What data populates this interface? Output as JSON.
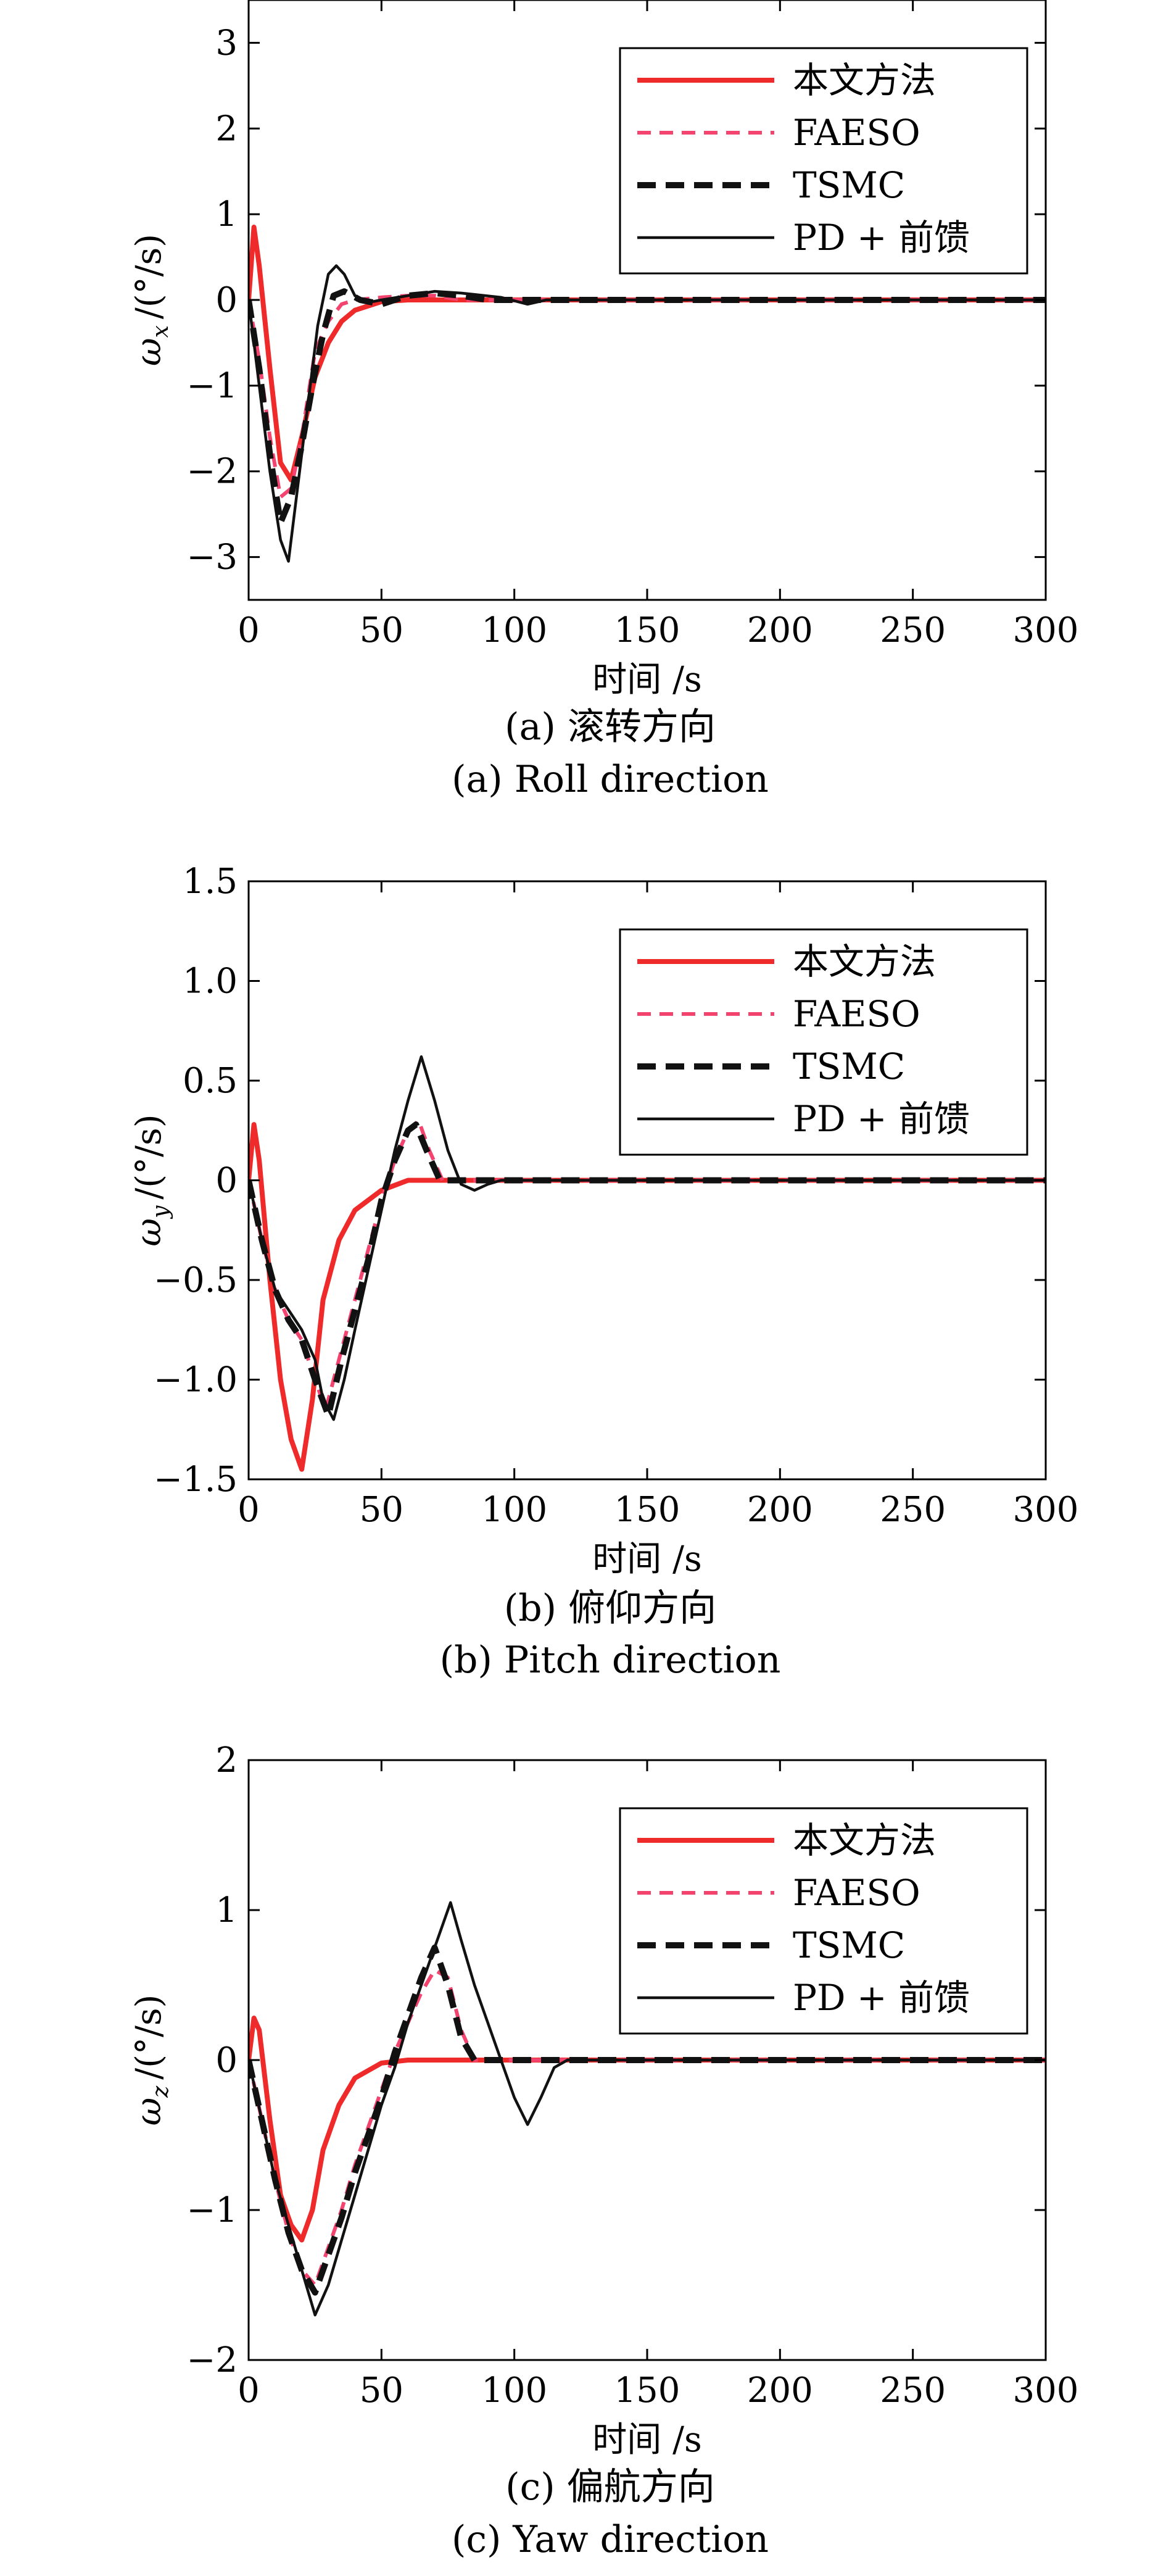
{
  "chart_data": [
    {
      "type": "line",
      "caption_cn": "(a) 滚转方向",
      "caption_en": "(a) Roll direction",
      "xlabel": "时间 /s",
      "ylabel": "ω_x /(°/s)",
      "ylabel_symbol": "ω",
      "ylabel_sub": "x",
      "ylabel_unit": "/(°/s)",
      "xlim": [
        0,
        300
      ],
      "ylim": [
        -3.5,
        3.5
      ],
      "xticks": [
        0,
        50,
        100,
        150,
        200,
        250,
        300
      ],
      "xtick_labels": [
        "0",
        "50",
        "100",
        "150",
        "200",
        "250",
        "300"
      ],
      "yticks": [
        3,
        2,
        1,
        0,
        -1,
        -2,
        -3
      ],
      "ytick_labels": [
        "3",
        "2",
        "1",
        "0",
        "−1",
        "−2",
        "−3"
      ],
      "legend_position": "top-right",
      "grid": false,
      "series": [
        {
          "name": "本文方法",
          "color": "#ee2a2a",
          "style": "solid-thick",
          "x": [
            0,
            2,
            4,
            8,
            12,
            16,
            20,
            25,
            30,
            35,
            40,
            50,
            60,
            70,
            80,
            300
          ],
          "y": [
            0,
            0.85,
            0.4,
            -0.8,
            -1.9,
            -2.1,
            -1.6,
            -0.9,
            -0.5,
            -0.25,
            -0.12,
            -0.02,
            0,
            0,
            0,
            0
          ]
        },
        {
          "name": "FAESO",
          "color": "#f2446f",
          "style": "dashed",
          "x": [
            0,
            4,
            8,
            12,
            16,
            20,
            25,
            30,
            35,
            40,
            50,
            60,
            70,
            80,
            300
          ],
          "y": [
            0,
            -0.7,
            -1.6,
            -2.3,
            -2.2,
            -1.6,
            -0.6,
            -0.25,
            -0.05,
            0,
            0.03,
            0.05,
            0.05,
            0,
            0
          ]
        },
        {
          "name": "TSMC",
          "color": "#111111",
          "style": "dashed-thick",
          "x": [
            0,
            4,
            8,
            12,
            16,
            20,
            24,
            28,
            32,
            36,
            42,
            50,
            60,
            70,
            80,
            90,
            300
          ],
          "y": [
            0,
            -0.8,
            -1.8,
            -2.6,
            -2.3,
            -1.7,
            -1.0,
            -0.4,
            0.05,
            0.1,
            0,
            -0.05,
            0.05,
            0.08,
            0.05,
            0,
            0
          ]
        },
        {
          "name": "PD + 前馈",
          "color": "#111111",
          "style": "solid",
          "x": [
            0,
            4,
            8,
            12,
            15,
            18,
            22,
            26,
            30,
            33,
            36,
            40,
            45,
            50,
            60,
            70,
            80,
            95,
            105,
            112,
            300
          ],
          "y": [
            0,
            -1.0,
            -2.0,
            -2.8,
            -3.05,
            -2.3,
            -1.3,
            -0.3,
            0.3,
            0.4,
            0.3,
            0.05,
            -0.03,
            0,
            0.05,
            0.1,
            0.08,
            0.03,
            -0.05,
            0,
            0
          ]
        }
      ]
    },
    {
      "type": "line",
      "caption_cn": "(b) 俯仰方向",
      "caption_en": "(b) Pitch direction",
      "xlabel": "时间 /s",
      "ylabel": "ω_y /(°/s)",
      "ylabel_symbol": "ω",
      "ylabel_sub": "y",
      "ylabel_unit": "/(°/s)",
      "xlim": [
        0,
        300
      ],
      "ylim": [
        -1.5,
        1.5
      ],
      "xticks": [
        0,
        50,
        100,
        150,
        200,
        250,
        300
      ],
      "xtick_labels": [
        "0",
        "50",
        "100",
        "150",
        "200",
        "250",
        "300"
      ],
      "yticks": [
        1.5,
        1.0,
        0.5,
        0,
        -0.5,
        -1.0,
        -1.5
      ],
      "ytick_labels": [
        "1.5",
        "1.0",
        "0.5",
        "0",
        "−0.5",
        "−1.0",
        "−1.5"
      ],
      "legend_position": "top-right",
      "grid": false,
      "series": [
        {
          "name": "本文方法",
          "color": "#ee2a2a",
          "style": "solid-thick",
          "x": [
            0,
            2,
            4,
            8,
            12,
            16,
            20,
            24,
            28,
            34,
            40,
            50,
            60,
            70,
            80,
            300
          ],
          "y": [
            0,
            0.28,
            0.1,
            -0.5,
            -1.0,
            -1.3,
            -1.45,
            -1.1,
            -0.6,
            -0.3,
            -0.15,
            -0.05,
            0,
            0,
            0,
            0
          ]
        },
        {
          "name": "FAESO",
          "color": "#f2446f",
          "style": "dashed",
          "x": [
            0,
            5,
            10,
            15,
            20,
            25,
            29,
            35,
            40,
            45,
            50,
            55,
            60,
            64,
            68,
            73,
            78,
            300
          ],
          "y": [
            0,
            -0.3,
            -0.55,
            -0.7,
            -0.8,
            -1.0,
            -1.15,
            -0.85,
            -0.6,
            -0.35,
            -0.1,
            0.1,
            0.25,
            0.3,
            0.15,
            0,
            0,
            0
          ]
        },
        {
          "name": "TSMC",
          "color": "#111111",
          "style": "dashed-thick",
          "x": [
            0,
            5,
            10,
            15,
            20,
            25,
            30,
            35,
            40,
            45,
            50,
            55,
            60,
            63,
            67,
            72,
            78,
            300
          ],
          "y": [
            0,
            -0.3,
            -0.55,
            -0.7,
            -0.8,
            -1.0,
            -1.18,
            -0.9,
            -0.65,
            -0.4,
            -0.1,
            0.1,
            0.25,
            0.28,
            0.15,
            0,
            0,
            0
          ]
        },
        {
          "name": "PD + 前馈",
          "color": "#111111",
          "style": "solid",
          "x": [
            0,
            5,
            10,
            15,
            20,
            25,
            28,
            32,
            36,
            40,
            45,
            50,
            55,
            60,
            65,
            70,
            75,
            80,
            85,
            90,
            95,
            300
          ],
          "y": [
            0,
            -0.3,
            -0.55,
            -0.65,
            -0.75,
            -0.9,
            -1.1,
            -1.2,
            -1.0,
            -0.75,
            -0.45,
            -0.15,
            0.15,
            0.4,
            0.62,
            0.4,
            0.15,
            -0.02,
            -0.05,
            -0.02,
            0,
            0
          ]
        }
      ]
    },
    {
      "type": "line",
      "caption_cn": "(c) 偏航方向",
      "caption_en": "(c) Yaw direction",
      "xlabel": "时间 /s",
      "ylabel": "ω_z /(°/s)",
      "ylabel_symbol": "ω",
      "ylabel_sub": "z",
      "ylabel_unit": "/(°/s)",
      "xlim": [
        0,
        300
      ],
      "ylim": [
        -2,
        2
      ],
      "xticks": [
        0,
        50,
        100,
        150,
        200,
        250,
        300
      ],
      "xtick_labels": [
        "0",
        "50",
        "100",
        "150",
        "200",
        "250",
        "300"
      ],
      "yticks": [
        2,
        1,
        0,
        -1,
        -2
      ],
      "ytick_labels": [
        "2",
        "1",
        "0",
        "−1",
        "−2"
      ],
      "legend_position": "top-right",
      "grid": false,
      "series": [
        {
          "name": "本文方法",
          "color": "#ee2a2a",
          "style": "solid-thick",
          "x": [
            0,
            2,
            4,
            8,
            12,
            16,
            20,
            24,
            28,
            34,
            40,
            50,
            60,
            70,
            300
          ],
          "y": [
            0,
            0.28,
            0.2,
            -0.4,
            -0.9,
            -1.1,
            -1.2,
            -1.0,
            -0.6,
            -0.3,
            -0.12,
            -0.02,
            0,
            0,
            0
          ]
        },
        {
          "name": "FAESO",
          "color": "#f2446f",
          "style": "dashed",
          "x": [
            0,
            5,
            10,
            15,
            20,
            25,
            30,
            35,
            40,
            45,
            50,
            55,
            60,
            65,
            70,
            75,
            80,
            85,
            300
          ],
          "y": [
            0,
            -0.4,
            -0.8,
            -1.15,
            -1.4,
            -1.5,
            -1.25,
            -1.0,
            -0.7,
            -0.45,
            -0.2,
            0.05,
            0.25,
            0.45,
            0.6,
            0.55,
            0.2,
            0,
            0
          ]
        },
        {
          "name": "TSMC",
          "color": "#111111",
          "style": "dashed-thick",
          "x": [
            0,
            5,
            10,
            15,
            20,
            25,
            30,
            35,
            40,
            45,
            50,
            55,
            60,
            65,
            70,
            75,
            80,
            85,
            300
          ],
          "y": [
            0,
            -0.4,
            -0.8,
            -1.15,
            -1.4,
            -1.55,
            -1.3,
            -1.05,
            -0.75,
            -0.5,
            -0.25,
            0.05,
            0.3,
            0.55,
            0.75,
            0.5,
            0.15,
            0,
            0
          ]
        },
        {
          "name": "PD + 前馈",
          "color": "#111111",
          "style": "solid",
          "x": [
            0,
            5,
            10,
            15,
            20,
            25,
            30,
            35,
            40,
            45,
            50,
            55,
            60,
            65,
            70,
            76,
            80,
            85,
            90,
            95,
            100,
            105,
            110,
            115,
            120,
            300
          ],
          "y": [
            0,
            -0.4,
            -0.8,
            -1.1,
            -1.4,
            -1.7,
            -1.5,
            -1.2,
            -0.9,
            -0.6,
            -0.3,
            -0.05,
            0.25,
            0.5,
            0.75,
            1.05,
            0.8,
            0.5,
            0.25,
            0,
            -0.25,
            -0.43,
            -0.25,
            -0.05,
            0,
            0
          ]
        }
      ]
    }
  ]
}
